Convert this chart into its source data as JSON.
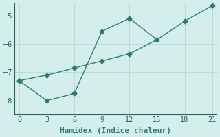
{
  "xlabel": "Humidex (Indice chaleur)",
  "bg_color": "#d4eeeb",
  "grid_color": "#b8d8d4",
  "line_color": "#2d7a74",
  "series1_x": [
    0,
    3,
    6,
    9,
    12,
    15
  ],
  "series1_y": [
    -7.3,
    -8.0,
    -7.75,
    -5.55,
    -5.1,
    -5.85
  ],
  "series2_x": [
    0,
    3,
    6,
    9,
    12,
    15,
    18,
    21
  ],
  "series2_y": [
    -7.3,
    -7.1,
    -6.85,
    -6.6,
    -6.35,
    -5.85,
    -5.2,
    -4.65
  ],
  "xlim": [
    -0.5,
    21.5
  ],
  "ylim": [
    -8.5,
    -4.55
  ],
  "xticks": [
    0,
    3,
    6,
    9,
    12,
    15,
    18,
    21
  ],
  "yticks": [
    -8,
    -7,
    -6,
    -5
  ],
  "figsize": [
    3.2,
    2.0
  ],
  "dpi": 100,
  "marker_size": 3.5,
  "linewidth": 1.0,
  "tick_fontsize": 7,
  "xlabel_fontsize": 8,
  "spine_color": "#2d6060",
  "tick_color": "#2d5555"
}
